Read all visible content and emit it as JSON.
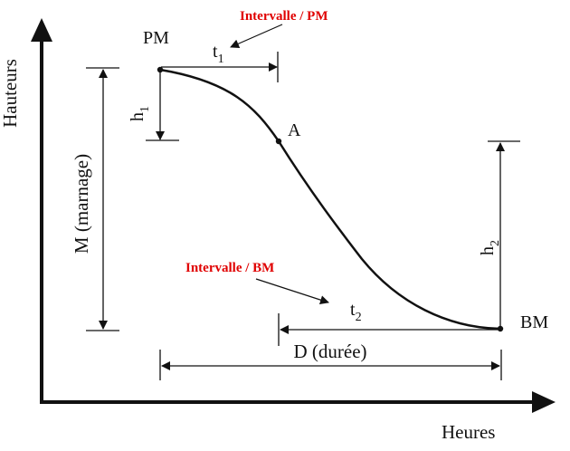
{
  "diagram": {
    "y_axis_label": "Hauteurs",
    "x_axis_label": "Heures",
    "point_pm": "PM",
    "point_bm": "BM",
    "point_a": "A",
    "label_t1": "t",
    "label_t1_sub": "1",
    "label_t2": "t",
    "label_t2_sub": "2",
    "label_h1": "h",
    "label_h1_sub": "1",
    "label_h2": "h",
    "label_h2_sub": "2",
    "label_marnage": "M (marnage)",
    "label_duree": "D (durée)",
    "callout_pm": "Intervalle / PM",
    "callout_bm": "Intervalle / BM",
    "accent_color": "#e00000"
  }
}
